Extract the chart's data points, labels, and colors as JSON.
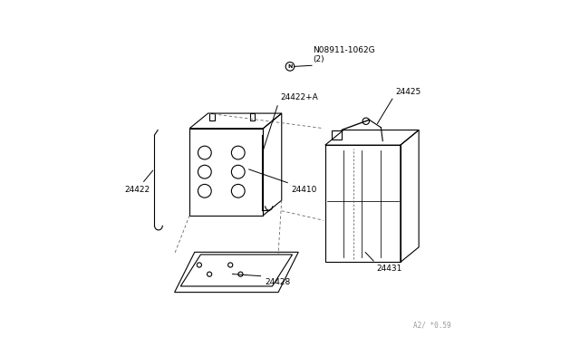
{
  "bg_color": "#ffffff",
  "line_color": "#000000",
  "dashed_color": "#666666",
  "fig_width": 6.4,
  "fig_height": 3.72,
  "dpi": 100,
  "watermark": "A2/ *0.59",
  "parts": {
    "24410": {
      "label": "24410"
    },
    "24422": {
      "label": "24422"
    },
    "24422A": {
      "label": "24422+A"
    },
    "24428": {
      "label": "24428"
    },
    "24431": {
      "label": "24431"
    },
    "24425": {
      "label": "24425"
    },
    "NUT": {
      "label": "N08911-1062G\n(2)"
    }
  }
}
